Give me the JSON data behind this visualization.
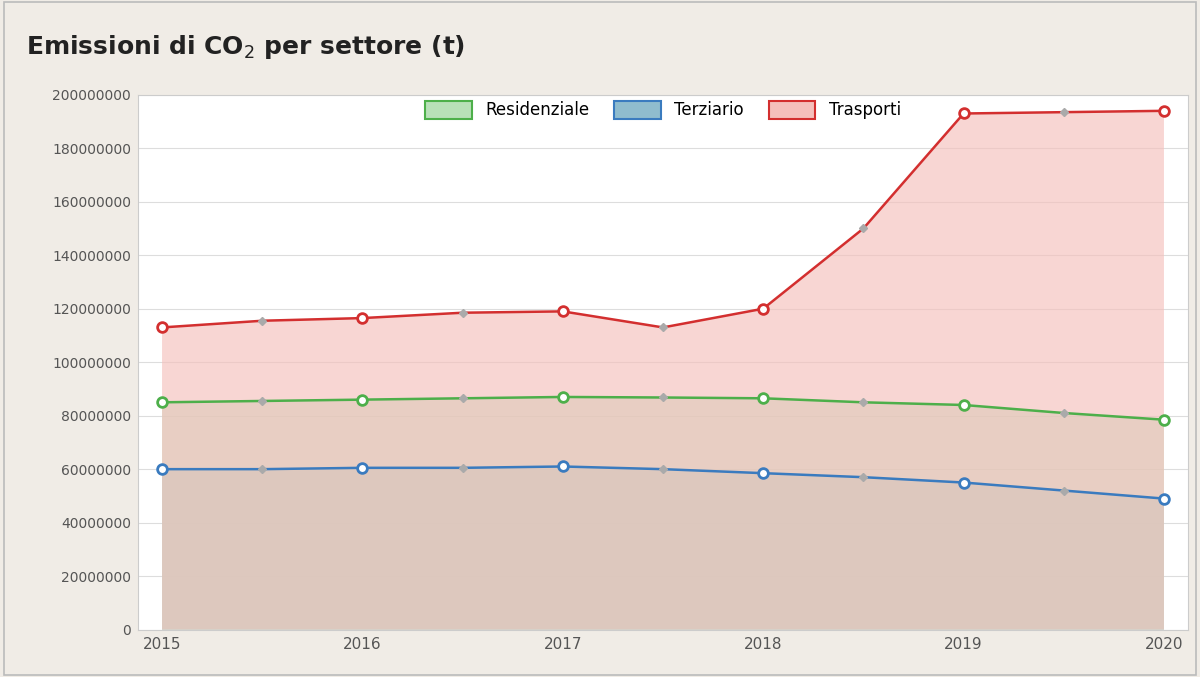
{
  "title_parts": [
    "Emissioni di CO",
    "2",
    " per settore (t)"
  ],
  "background_color": "#f0ece6",
  "plot_background_color": "#ffffff",
  "border_color": "#cccccc",
  "years_int": [
    2015,
    2016,
    2017,
    2018,
    2019,
    2020
  ],
  "years_all": [
    2015,
    2015.5,
    2016,
    2016.5,
    2017,
    2017.5,
    2018,
    2018.5,
    2019,
    2019.5,
    2020
  ],
  "residenziale": [
    85000000,
    85500000,
    86000000,
    86500000,
    87000000,
    86800000,
    86500000,
    85000000,
    84000000,
    81000000,
    78500000
  ],
  "terziario": [
    60000000,
    60000000,
    60500000,
    60500000,
    61000000,
    60000000,
    58500000,
    57000000,
    55000000,
    52000000,
    49000000
  ],
  "trasporti": [
    113000000,
    115500000,
    116500000,
    118500000,
    119000000,
    113000000,
    120000000,
    150000000,
    193000000,
    193500000,
    194000000
  ],
  "residenziale_line_color": "#4daf4a",
  "terziario_line_color": "#3a7bbf",
  "trasporti_line_color": "#d32f2f",
  "residenziale_fill_color": "#b8e0b8",
  "terziario_fill_color": "#8fbcce",
  "trasporti_fill_color": "#f5c0bc",
  "grid_color": "#dddddd",
  "marker_int_color_res": "#4daf4a",
  "marker_int_color_ter": "#3a7bbf",
  "marker_int_color_tra": "#d32f2f",
  "marker_half_color": "#aaaaaa",
  "ylim": [
    0,
    200000000
  ],
  "yticks": [
    0,
    20000000,
    40000000,
    60000000,
    80000000,
    100000000,
    120000000,
    140000000,
    160000000,
    180000000,
    200000000
  ],
  "xlim_min": 2014.88,
  "xlim_max": 2020.12,
  "xticks": [
    2015,
    2016,
    2017,
    2018,
    2019,
    2020
  ],
  "legend_labels": [
    "Residenziale",
    "Terziario",
    "Trasporti"
  ],
  "title_fontsize": 18,
  "tick_fontsize": 10,
  "legend_fontsize": 12
}
